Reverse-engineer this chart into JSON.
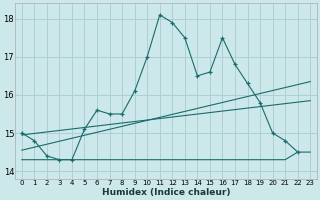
{
  "xlabel": "Humidex (Indice chaleur)",
  "background_color": "#cce8ea",
  "grid_color": "#aed0d4",
  "line_color": "#1a6b6b",
  "xlim": [
    -0.5,
    23.5
  ],
  "ylim": [
    13.8,
    18.4
  ],
  "yticks": [
    14,
    15,
    16,
    17,
    18
  ],
  "xticks": [
    0,
    1,
    2,
    3,
    4,
    5,
    6,
    7,
    8,
    9,
    10,
    11,
    12,
    13,
    14,
    15,
    16,
    17,
    18,
    19,
    20,
    21,
    22,
    23
  ],
  "series1_x": [
    0,
    1,
    2,
    3,
    4,
    5,
    6,
    7,
    8,
    9,
    10,
    11,
    12,
    13,
    14,
    15,
    16,
    17,
    18,
    19,
    20,
    21,
    22
  ],
  "series1_y": [
    15.0,
    14.8,
    14.4,
    14.3,
    14.3,
    15.1,
    15.6,
    15.5,
    15.5,
    16.1,
    17.0,
    18.1,
    17.9,
    17.5,
    16.5,
    16.6,
    17.5,
    16.8,
    16.3,
    15.8,
    15.0,
    14.8,
    14.5
  ],
  "series2_x": [
    0,
    1,
    2,
    3,
    4,
    5,
    6,
    7,
    8,
    9,
    10,
    11,
    12,
    13,
    14,
    15,
    16,
    17,
    18,
    19,
    20,
    21,
    22,
    23
  ],
  "series2_y": [
    14.3,
    14.3,
    14.3,
    14.3,
    14.3,
    14.3,
    14.3,
    14.3,
    14.3,
    14.3,
    14.3,
    14.3,
    14.3,
    14.3,
    14.3,
    14.3,
    14.3,
    14.3,
    14.3,
    14.3,
    14.3,
    14.3,
    14.5,
    14.5
  ],
  "series3_x": [
    0,
    23
  ],
  "series3_y": [
    14.55,
    16.35
  ],
  "series4_x": [
    0,
    23
  ],
  "series4_y": [
    14.95,
    15.85
  ]
}
